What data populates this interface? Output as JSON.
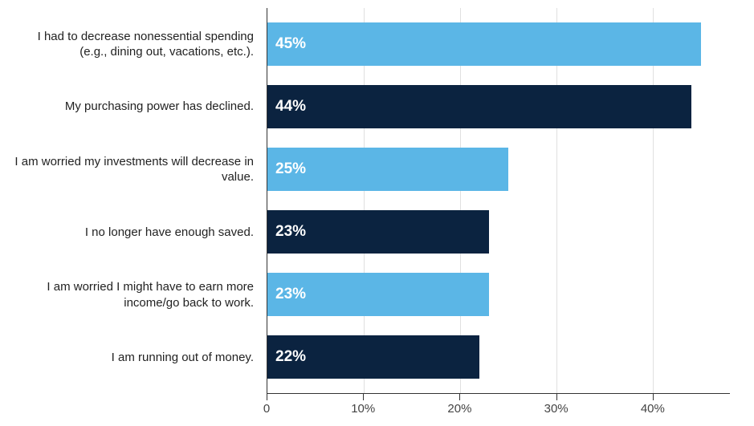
{
  "chart": {
    "type": "bar-horizontal",
    "background_color": "#ffffff",
    "grid_color": "#e0e0e0",
    "axis_color": "#333333",
    "label_color": "#222222",
    "tick_label_color": "#444444",
    "bar_label_color": "#ffffff",
    "bar_label_fontsize": 19,
    "bar_label_fontweight": 700,
    "y_label_fontsize": 15,
    "tick_label_fontsize": 15,
    "xlim": [
      0,
      48
    ],
    "xticks": [
      0,
      10,
      20,
      30,
      40
    ],
    "xtick_labels": [
      "0",
      "10%",
      "20%",
      "30%",
      "40%"
    ],
    "colors": {
      "light": "#5bb6e6",
      "dark": "#0b2340"
    },
    "bars": [
      {
        "label": "I had to decrease nonessential spending (e.g., dining out, vacations, etc.).",
        "value": 45,
        "value_label": "45%",
        "color": "#5bb6e6"
      },
      {
        "label": "My purchasing power has declined.",
        "value": 44,
        "value_label": "44%",
        "color": "#0b2340"
      },
      {
        "label": "I am worried my investments will decrease in value.",
        "value": 25,
        "value_label": "25%",
        "color": "#5bb6e6"
      },
      {
        "label": "I no longer have enough saved.",
        "value": 23,
        "value_label": "23%",
        "color": "#0b2340"
      },
      {
        "label": "I am worried I might have to earn more income/go back to work.",
        "value": 23,
        "value_label": "23%",
        "color": "#5bb6e6"
      },
      {
        "label": "I am running out of money.",
        "value": 22,
        "value_label": "22%",
        "color": "#0b2340"
      }
    ]
  }
}
